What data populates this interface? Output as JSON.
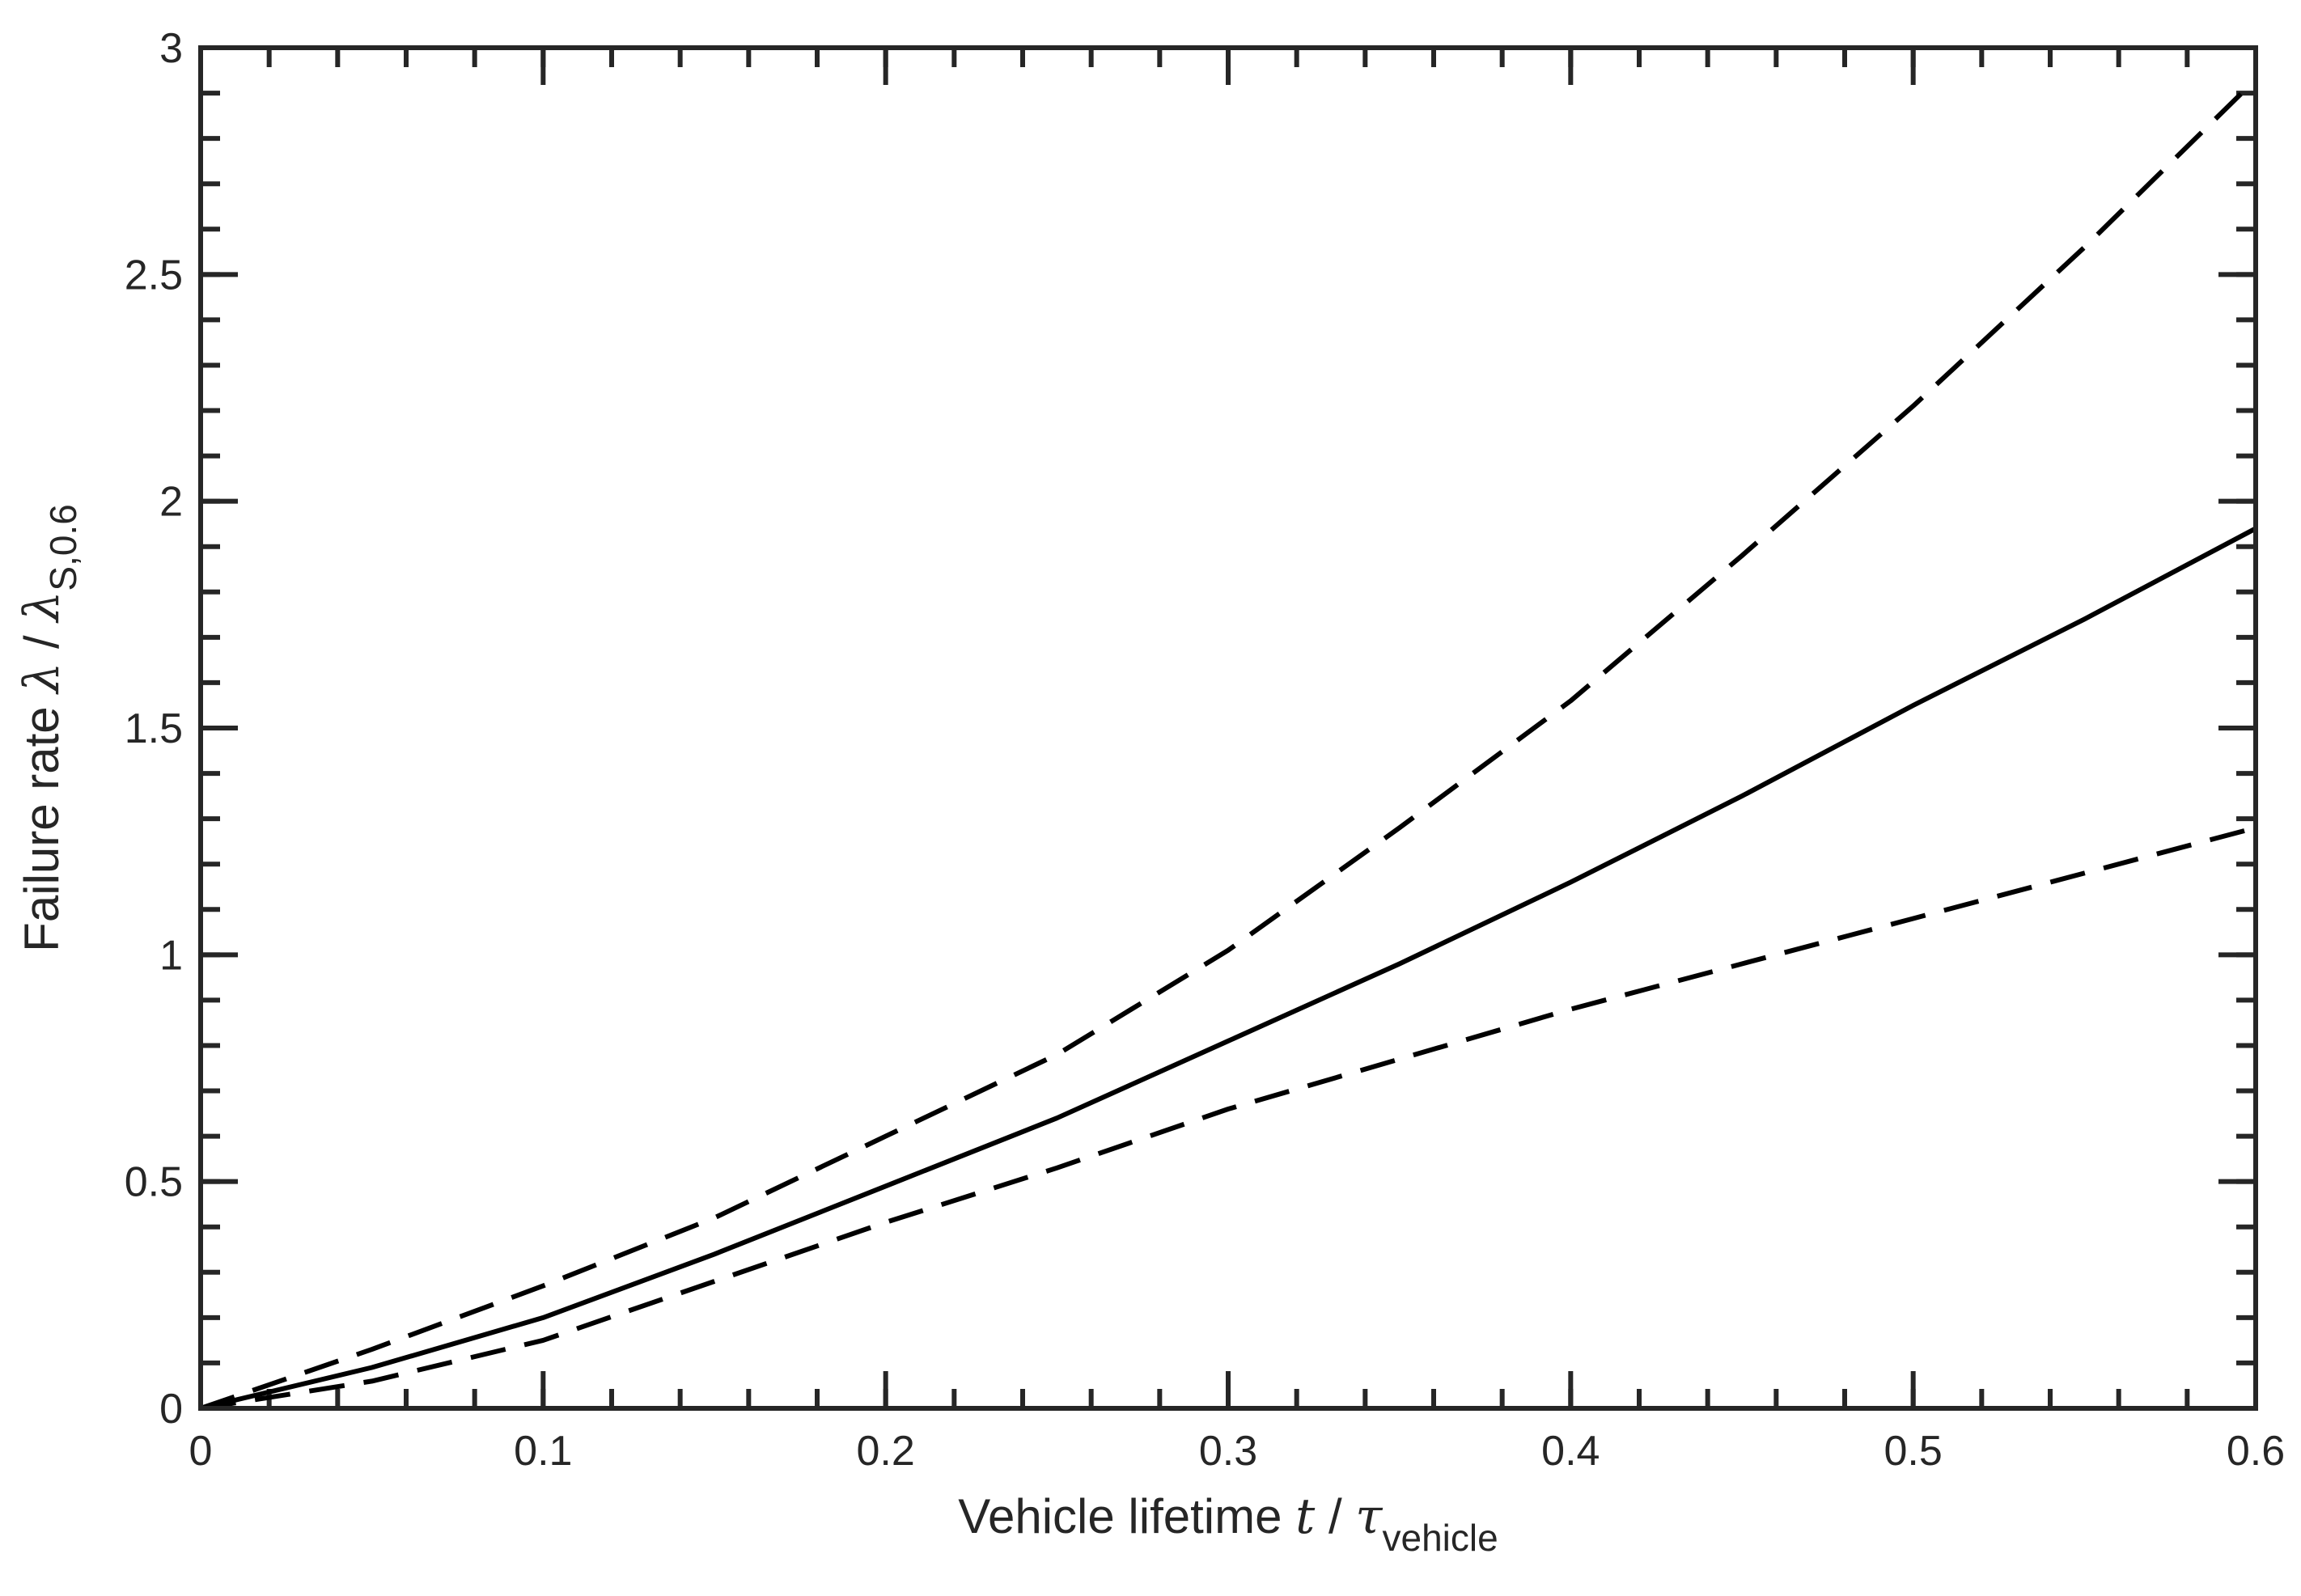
{
  "chart_data": {
    "type": "line",
    "xlabel": {
      "text": "Vehicle lifetime ",
      "var": "t",
      "sep": " / ",
      "sym": "τ",
      "sub": "vehicle"
    },
    "ylabel": {
      "text": "Failure rate ",
      "var": "λ",
      "sep": " / ",
      "sym": "λ",
      "sub": "S,0.6"
    },
    "xlim": [
      0,
      0.6
    ],
    "ylim": [
      0,
      3
    ],
    "xticks": [
      "0",
      "0.1",
      "0.2",
      "0.3",
      "0.4",
      "0.5",
      "0.6"
    ],
    "yticks": [
      "0",
      "0.5",
      "1",
      "1.5",
      "2",
      "2.5",
      "3"
    ],
    "xtick_values": [
      0,
      0.1,
      0.2,
      0.3,
      0.4,
      0.5,
      0.6
    ],
    "ytick_values": [
      0,
      0.5,
      1,
      1.5,
      2,
      2.5,
      3
    ],
    "minor_x_step": 0.02,
    "minor_y_step": 0.1,
    "grid": false,
    "series": [
      {
        "style": "dashed",
        "color": "#000000",
        "x": [
          0,
          0.05,
          0.1,
          0.15,
          0.2,
          0.25,
          0.3,
          0.35,
          0.4,
          0.45,
          0.5,
          0.55,
          0.6
        ],
        "y": [
          0,
          0.13,
          0.27,
          0.42,
          0.6,
          0.78,
          1.01,
          1.28,
          1.56,
          1.88,
          2.21,
          2.56,
          2.93
        ]
      },
      {
        "style": "solid",
        "color": "#000000",
        "x": [
          0,
          0.05,
          0.1,
          0.15,
          0.2,
          0.25,
          0.3,
          0.35,
          0.4,
          0.45,
          0.5,
          0.55,
          0.6
        ],
        "y": [
          0,
          0.09,
          0.2,
          0.34,
          0.49,
          0.64,
          0.81,
          0.98,
          1.16,
          1.35,
          1.55,
          1.74,
          1.94
        ]
      },
      {
        "style": "dashed",
        "color": "#000000",
        "x": [
          0,
          0.05,
          0.1,
          0.15,
          0.2,
          0.25,
          0.3,
          0.35,
          0.4,
          0.45,
          0.5,
          0.55,
          0.6
        ],
        "y": [
          0,
          0.06,
          0.15,
          0.28,
          0.41,
          0.53,
          0.66,
          0.77,
          0.88,
          0.98,
          1.08,
          1.18,
          1.28
        ]
      }
    ]
  }
}
